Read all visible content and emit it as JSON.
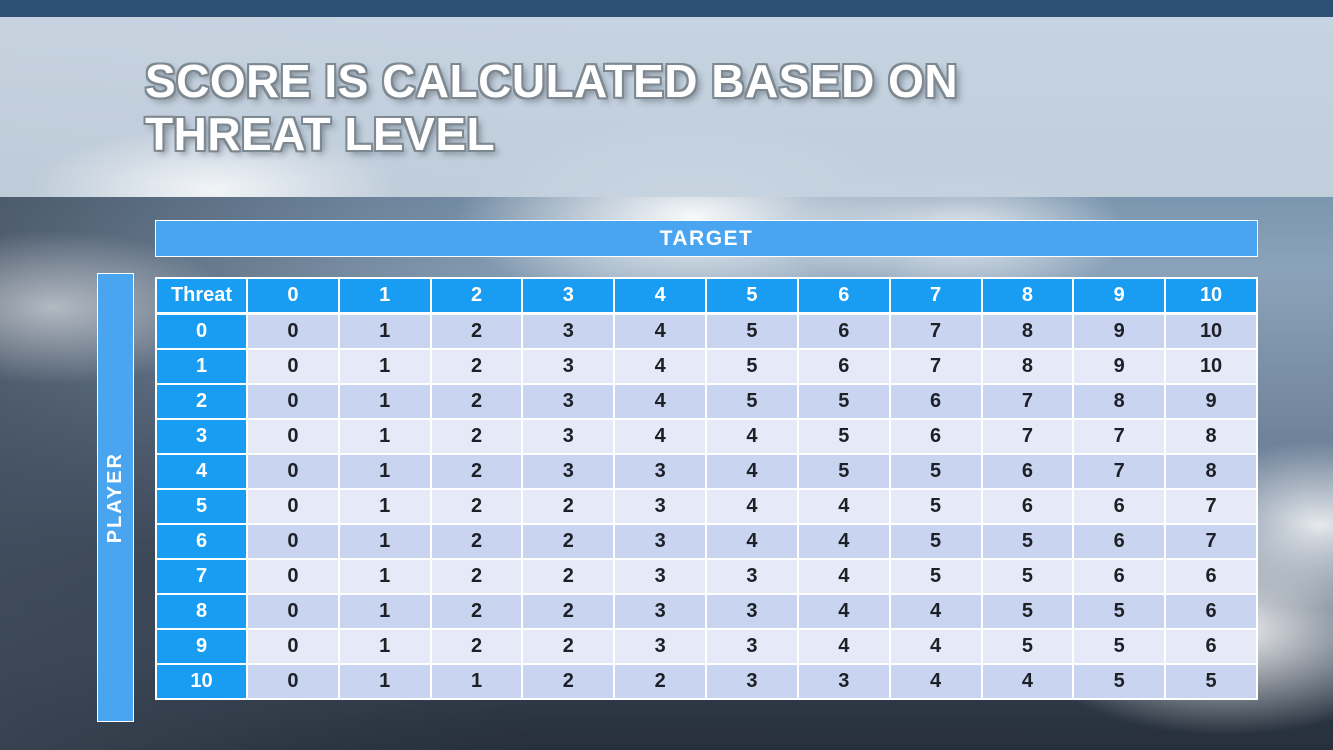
{
  "slide": {
    "title_lines": [
      "SCORE IS CALCULATED BASED ON",
      "THREAT LEVEL"
    ]
  },
  "matrix": {
    "target_axis_label": "TARGET",
    "player_axis_label": "PLAYER",
    "corner_header": "Threat",
    "column_headers": [
      "0",
      "1",
      "2",
      "3",
      "4",
      "5",
      "6",
      "7",
      "8",
      "9",
      "10"
    ],
    "rows": [
      {
        "threat": "0",
        "values": [
          "0",
          "1",
          "2",
          "3",
          "4",
          "5",
          "6",
          "7",
          "8",
          "9",
          "10"
        ]
      },
      {
        "threat": "1",
        "values": [
          "0",
          "1",
          "2",
          "3",
          "4",
          "5",
          "6",
          "7",
          "8",
          "9",
          "10"
        ]
      },
      {
        "threat": "2",
        "values": [
          "0",
          "1",
          "2",
          "3",
          "4",
          "5",
          "5",
          "6",
          "7",
          "8",
          "9"
        ]
      },
      {
        "threat": "3",
        "values": [
          "0",
          "1",
          "2",
          "3",
          "4",
          "4",
          "5",
          "6",
          "7",
          "7",
          "8"
        ]
      },
      {
        "threat": "4",
        "values": [
          "0",
          "1",
          "2",
          "3",
          "3",
          "4",
          "5",
          "5",
          "6",
          "7",
          "8"
        ]
      },
      {
        "threat": "5",
        "values": [
          "0",
          "1",
          "2",
          "2",
          "3",
          "4",
          "4",
          "5",
          "6",
          "6",
          "7"
        ]
      },
      {
        "threat": "6",
        "values": [
          "0",
          "1",
          "2",
          "2",
          "3",
          "4",
          "4",
          "5",
          "5",
          "6",
          "7"
        ]
      },
      {
        "threat": "7",
        "values": [
          "0",
          "1",
          "2",
          "2",
          "3",
          "3",
          "4",
          "5",
          "5",
          "6",
          "6"
        ]
      },
      {
        "threat": "8",
        "values": [
          "0",
          "1",
          "2",
          "2",
          "3",
          "3",
          "4",
          "4",
          "5",
          "5",
          "6"
        ]
      },
      {
        "threat": "9",
        "values": [
          "0",
          "1",
          "2",
          "2",
          "3",
          "3",
          "4",
          "4",
          "5",
          "5",
          "6"
        ]
      },
      {
        "threat": "10",
        "values": [
          "0",
          "1",
          "1",
          "2",
          "2",
          "3",
          "3",
          "4",
          "4",
          "5",
          "5"
        ]
      }
    ]
  },
  "colors": {
    "top_strip": "#2d5174",
    "axis_banner": "#49a5ef",
    "header_cell": "#189df2",
    "row_even": "#c9d5f0",
    "row_odd": "#e6eaf8",
    "cell_text": "#1d2026"
  }
}
